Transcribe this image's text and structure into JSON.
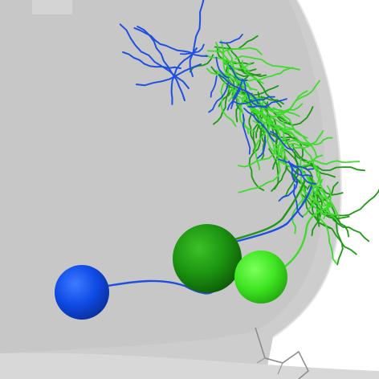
{
  "scene": {
    "kind": "3d-neuron-render",
    "background_color": "#ffffff",
    "mesh_color": "#cfcfcf",
    "mesh_edge_color": "#8a8a8a"
  },
  "neurons": [
    {
      "id": "neuron-blue",
      "color": "#1f4fe0",
      "soma_color": "#0a3ae6"
    },
    {
      "id": "neuron-dark-green",
      "color": "#1d9a14",
      "soma_color": "#1c8f12"
    },
    {
      "id": "neuron-light-green",
      "color": "#3ddc2a",
      "soma_color": "#37e61c"
    }
  ]
}
